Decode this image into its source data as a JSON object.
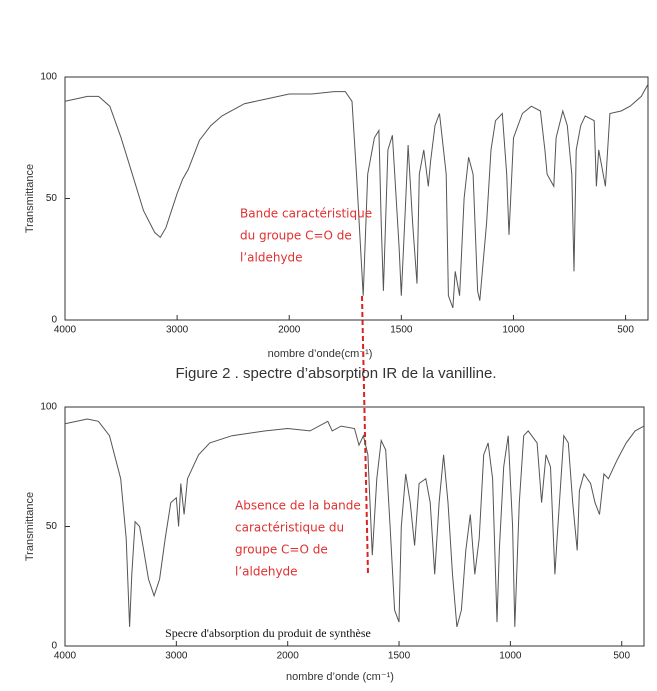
{
  "chart_data": [
    {
      "type": "line",
      "ylabel": "Transmittance",
      "xlabel": "nombre d’onde(cm⁻¹)",
      "caption": "Figure 2 . spectre d’absorption IR de la vanilline.",
      "annotation": [
        "Bande caractéristique",
        "du groupe C=O de",
        "l’aldehyde"
      ],
      "color": "#555555",
      "xlim": [
        4000,
        400
      ],
      "ylim": [
        0,
        100
      ],
      "xticks": [
        4000,
        3000,
        2000,
        1500,
        1000,
        500
      ],
      "yticks": [
        0,
        50,
        100
      ],
      "x": [
        4000,
        3900,
        3800,
        3700,
        3600,
        3500,
        3400,
        3300,
        3200,
        3150,
        3100,
        3000,
        2950,
        2900,
        2850,
        2800,
        2700,
        2600,
        2400,
        2200,
        2000,
        1900,
        1800,
        1750,
        1720,
        1700,
        1670,
        1650,
        1620,
        1600,
        1590,
        1580,
        1560,
        1540,
        1510,
        1500,
        1480,
        1470,
        1450,
        1430,
        1420,
        1400,
        1380,
        1370,
        1350,
        1330,
        1300,
        1290,
        1270,
        1260,
        1240,
        1220,
        1200,
        1180,
        1160,
        1150,
        1120,
        1100,
        1080,
        1050,
        1030,
        1020,
        1000,
        960,
        920,
        880,
        860,
        850,
        820,
        810,
        780,
        760,
        740,
        730,
        720,
        700,
        680,
        640,
        630,
        620,
        600,
        590,
        570,
        520,
        480,
        430,
        400
      ],
      "values": [
        90,
        91,
        92,
        92,
        88,
        75,
        60,
        45,
        36,
        34,
        38,
        52,
        58,
        62,
        68,
        74,
        80,
        84,
        89,
        91,
        93,
        93,
        94,
        94,
        90,
        60,
        10,
        60,
        75,
        78,
        40,
        12,
        70,
        76,
        30,
        10,
        50,
        72,
        40,
        15,
        60,
        70,
        55,
        65,
        80,
        85,
        60,
        10,
        5,
        20,
        10,
        50,
        67,
        60,
        12,
        8,
        40,
        70,
        82,
        85,
        60,
        35,
        75,
        85,
        88,
        86,
        70,
        60,
        55,
        75,
        86,
        80,
        60,
        20,
        70,
        80,
        84,
        82,
        55,
        70,
        60,
        55,
        85,
        86,
        88,
        92,
        97
      ]
    },
    {
      "type": "line",
      "ylabel": "Transmittance",
      "xlabel": "nombre d’onde (cm⁻¹)",
      "caption": "Specre d'absorption du produit de synthèse",
      "annotation": [
        "Absence de la bande",
        "caractéristique du",
        "groupe C=O de",
        "l’aldehyde"
      ],
      "color": "#555555",
      "xlim": [
        4000,
        400
      ],
      "ylim": [
        0,
        100
      ],
      "xticks": [
        4000,
        3000,
        2000,
        1500,
        1000,
        500
      ],
      "yticks": [
        0,
        50,
        100
      ],
      "x": [
        4000,
        3800,
        3700,
        3600,
        3500,
        3450,
        3420,
        3400,
        3370,
        3330,
        3300,
        3250,
        3200,
        3150,
        3100,
        3050,
        3000,
        2980,
        2960,
        2930,
        2900,
        2850,
        2800,
        2700,
        2500,
        2200,
        2000,
        1900,
        1820,
        1800,
        1760,
        1700,
        1680,
        1660,
        1640,
        1620,
        1600,
        1580,
        1560,
        1540,
        1520,
        1500,
        1490,
        1470,
        1450,
        1430,
        1410,
        1380,
        1360,
        1340,
        1320,
        1300,
        1280,
        1260,
        1240,
        1220,
        1200,
        1180,
        1160,
        1140,
        1120,
        1100,
        1080,
        1060,
        1050,
        1030,
        1010,
        990,
        980,
        960,
        940,
        920,
        880,
        860,
        840,
        820,
        800,
        790,
        760,
        740,
        720,
        700,
        690,
        670,
        640,
        620,
        600,
        580,
        560,
        520,
        480,
        440,
        400
      ],
      "values": [
        93,
        95,
        94,
        88,
        70,
        45,
        8,
        30,
        52,
        50,
        42,
        28,
        21,
        28,
        45,
        60,
        62,
        50,
        68,
        55,
        70,
        75,
        80,
        85,
        88,
        90,
        91,
        90,
        94,
        90,
        92,
        91,
        84,
        88,
        80,
        38,
        70,
        86,
        82,
        50,
        15,
        10,
        50,
        72,
        60,
        42,
        68,
        70,
        60,
        30,
        60,
        80,
        60,
        30,
        8,
        15,
        40,
        55,
        30,
        45,
        80,
        85,
        70,
        10,
        40,
        75,
        88,
        50,
        8,
        60,
        88,
        90,
        85,
        60,
        80,
        75,
        30,
        45,
        88,
        85,
        60,
        40,
        65,
        72,
        68,
        60,
        55,
        72,
        70,
        78,
        85,
        90,
        92
      ]
    }
  ]
}
